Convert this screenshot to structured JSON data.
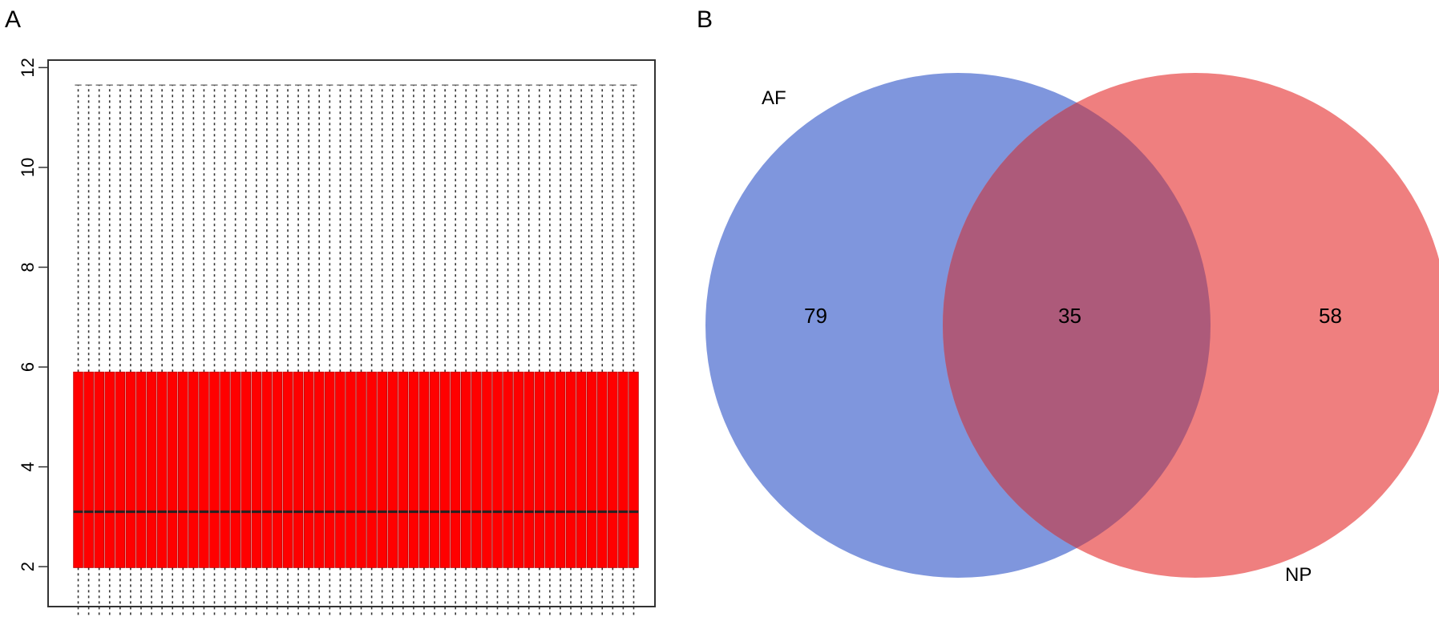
{
  "panels": {
    "left": "A",
    "right": "B"
  },
  "chart_data": [
    {
      "type": "box",
      "y_ticks": [
        "2",
        "4",
        "6",
        "8",
        "10",
        "12"
      ],
      "ylim": [
        1.2,
        12.15
      ],
      "n_boxes": 54,
      "box": {
        "whisker_low": 0.75,
        "q1": 1.98,
        "median": 3.1,
        "q3": 5.9,
        "whisker_high": 11.65
      },
      "box_color": "#ff0000",
      "grid": false
    },
    {
      "type": "venn",
      "sets": [
        {
          "name": "AF",
          "color": "#7f96dd"
        },
        {
          "name": "NP",
          "color": "#ef7f7f"
        }
      ],
      "regions": {
        "AF_only": "79",
        "intersection": "35",
        "NP_only": "58"
      },
      "intersection_color": "#ad5a7a"
    }
  ]
}
